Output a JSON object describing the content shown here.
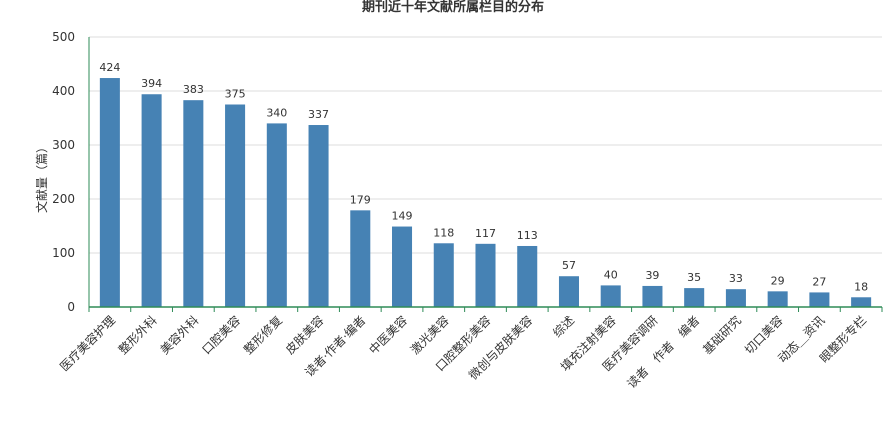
{
  "chart_data": {
    "type": "bar",
    "title": "期刊近十年文献所属栏目的分布",
    "xlabel": "",
    "ylabel": "文献量（篇）",
    "ylim": [
      0,
      500
    ],
    "yticks": [
      0,
      100,
      200,
      300,
      400,
      500
    ],
    "grid": true,
    "legend": "none",
    "bar_color": "#4682b4",
    "axis_color": "#2e8b57",
    "categories": [
      "医疗美容护理",
      "整形外科",
      "美容外科",
      "口腔美容",
      "整形修复",
      "皮肤美容",
      "读者·作者·编者",
      "中医美容",
      "激光美容",
      "口腔整形美容",
      "微创与皮肤美容",
      "综述",
      "填充注射美容",
      "医疗美容调研",
      "读者　作者　编者",
      "基础研究",
      "切口美容",
      "动态＿资讯",
      "眼整形专栏"
    ],
    "values": [
      424,
      394,
      383,
      375,
      340,
      337,
      179,
      149,
      118,
      117,
      113,
      57,
      40,
      39,
      35,
      33,
      29,
      27,
      18
    ]
  }
}
